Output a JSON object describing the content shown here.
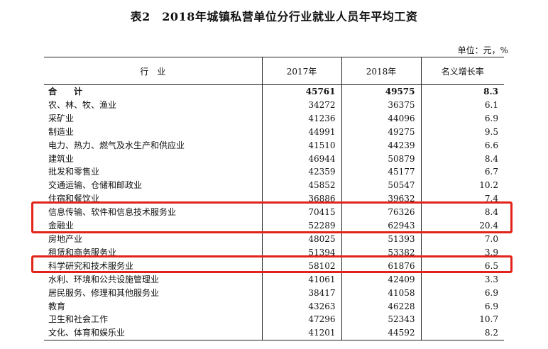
{
  "title": "表2　2018年城镇私营单位分行业就业人员年平均工资",
  "unit": "单位：元，%",
  "headers": [
    "行　业",
    "2017年",
    "2018年",
    "名义增长率"
  ],
  "rows": [
    {
      "name": "合　计",
      "y2017": "45761",
      "y2018": "49575",
      "growth": "8.3"
    },
    {
      "name": "农、林、牧、渔业",
      "y2017": "34272",
      "y2018": "36375",
      "growth": "6.1"
    },
    {
      "name": "采矿业",
      "y2017": "41236",
      "y2018": "44096",
      "growth": "6.9"
    },
    {
      "name": "制造业",
      "y2017": "44991",
      "y2018": "49275",
      "growth": "9.5"
    },
    {
      "name": "电力、热力、燃气及水生产和供应业",
      "y2017": "41510",
      "y2018": "44239",
      "growth": "6.6"
    },
    {
      "name": "建筑业",
      "y2017": "46944",
      "y2018": "50879",
      "growth": "8.4"
    },
    {
      "name": "批发和零售业",
      "y2017": "42359",
      "y2018": "45177",
      "growth": "6.7"
    },
    {
      "name": "交通运输、仓储和邮政业",
      "y2017": "45852",
      "y2018": "50547",
      "growth": "10.2"
    },
    {
      "name": "住宿和餐饮业",
      "y2017": "36886",
      "y2018": "39632",
      "growth": "7.4"
    },
    {
      "name": "信息传输、软件和信息技术服务业",
      "y2017": "70415",
      "y2018": "76326",
      "growth": "8.4"
    },
    {
      "name": "金融业",
      "y2017": "52289",
      "y2018": "62943",
      "growth": "20.4"
    },
    {
      "name": "房地产业",
      "y2017": "48025",
      "y2018": "51393",
      "growth": "7.0"
    },
    {
      "name": "租赁和商务服务业",
      "y2017": "51394",
      "y2018": "53382",
      "growth": "3.9"
    },
    {
      "name": "科学研究和技术服务业",
      "y2017": "58102",
      "y2018": "61876",
      "growth": "6.5"
    },
    {
      "name": "水利、环境和公共设施管理业",
      "y2017": "41061",
      "y2018": "42409",
      "growth": "3.3"
    },
    {
      "name": "居民服务、修理和其他服务业",
      "y2017": "38417",
      "y2018": "41058",
      "growth": "6.9"
    },
    {
      "name": "教育",
      "y2017": "43263",
      "y2018": "46228",
      "growth": "6.9"
    },
    {
      "name": "卫生和社会工作",
      "y2017": "47296",
      "y2018": "52343",
      "growth": "10.7"
    },
    {
      "name": "文化、体育和娱乐业",
      "y2017": "41201",
      "y2018": "44592",
      "growth": "8.2"
    }
  ],
  "highlight_color": "#e2231a"
}
